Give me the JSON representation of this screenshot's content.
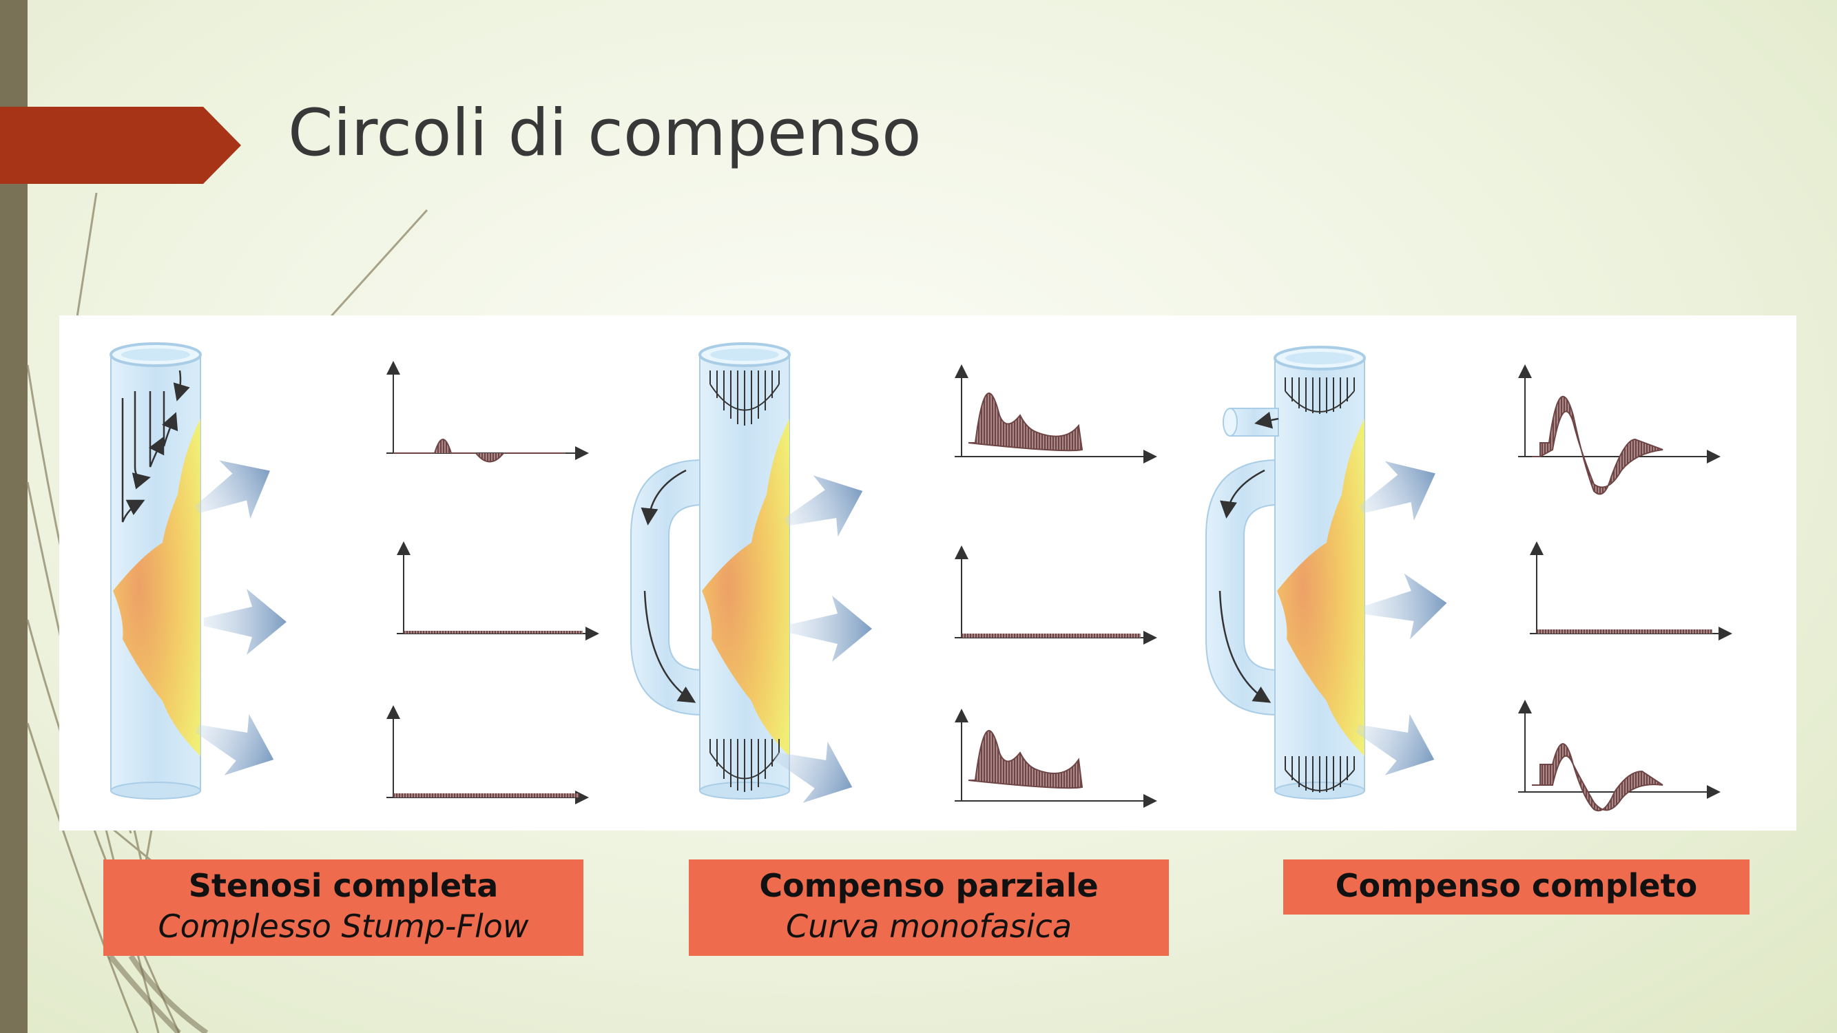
{
  "slide": {
    "title": "Circoli di compenso"
  },
  "colors": {
    "accent_arrow": "#a83418",
    "left_bar": "#7a7256",
    "label_background": "#ee6c4d",
    "vessel": "#cfe6f5",
    "plaque": "#f2b74a",
    "waveform": "#8a5a5a"
  },
  "panels": [
    {
      "title": "Stenosi completa",
      "subtitle": "Complesso Stump-Flow",
      "collateral": "none",
      "waveforms": [
        "stump-flow",
        "flat",
        "flat"
      ]
    },
    {
      "title": "Compenso parziale",
      "subtitle": "Curva monofasica",
      "collateral": "bypass",
      "waveforms": [
        "monophasic",
        "flat",
        "monophasic"
      ]
    },
    {
      "title": "Compenso completo",
      "subtitle": "",
      "collateral": "bypass-with-branch",
      "waveforms": [
        "biphasic",
        "flat",
        "biphasic"
      ]
    }
  ]
}
